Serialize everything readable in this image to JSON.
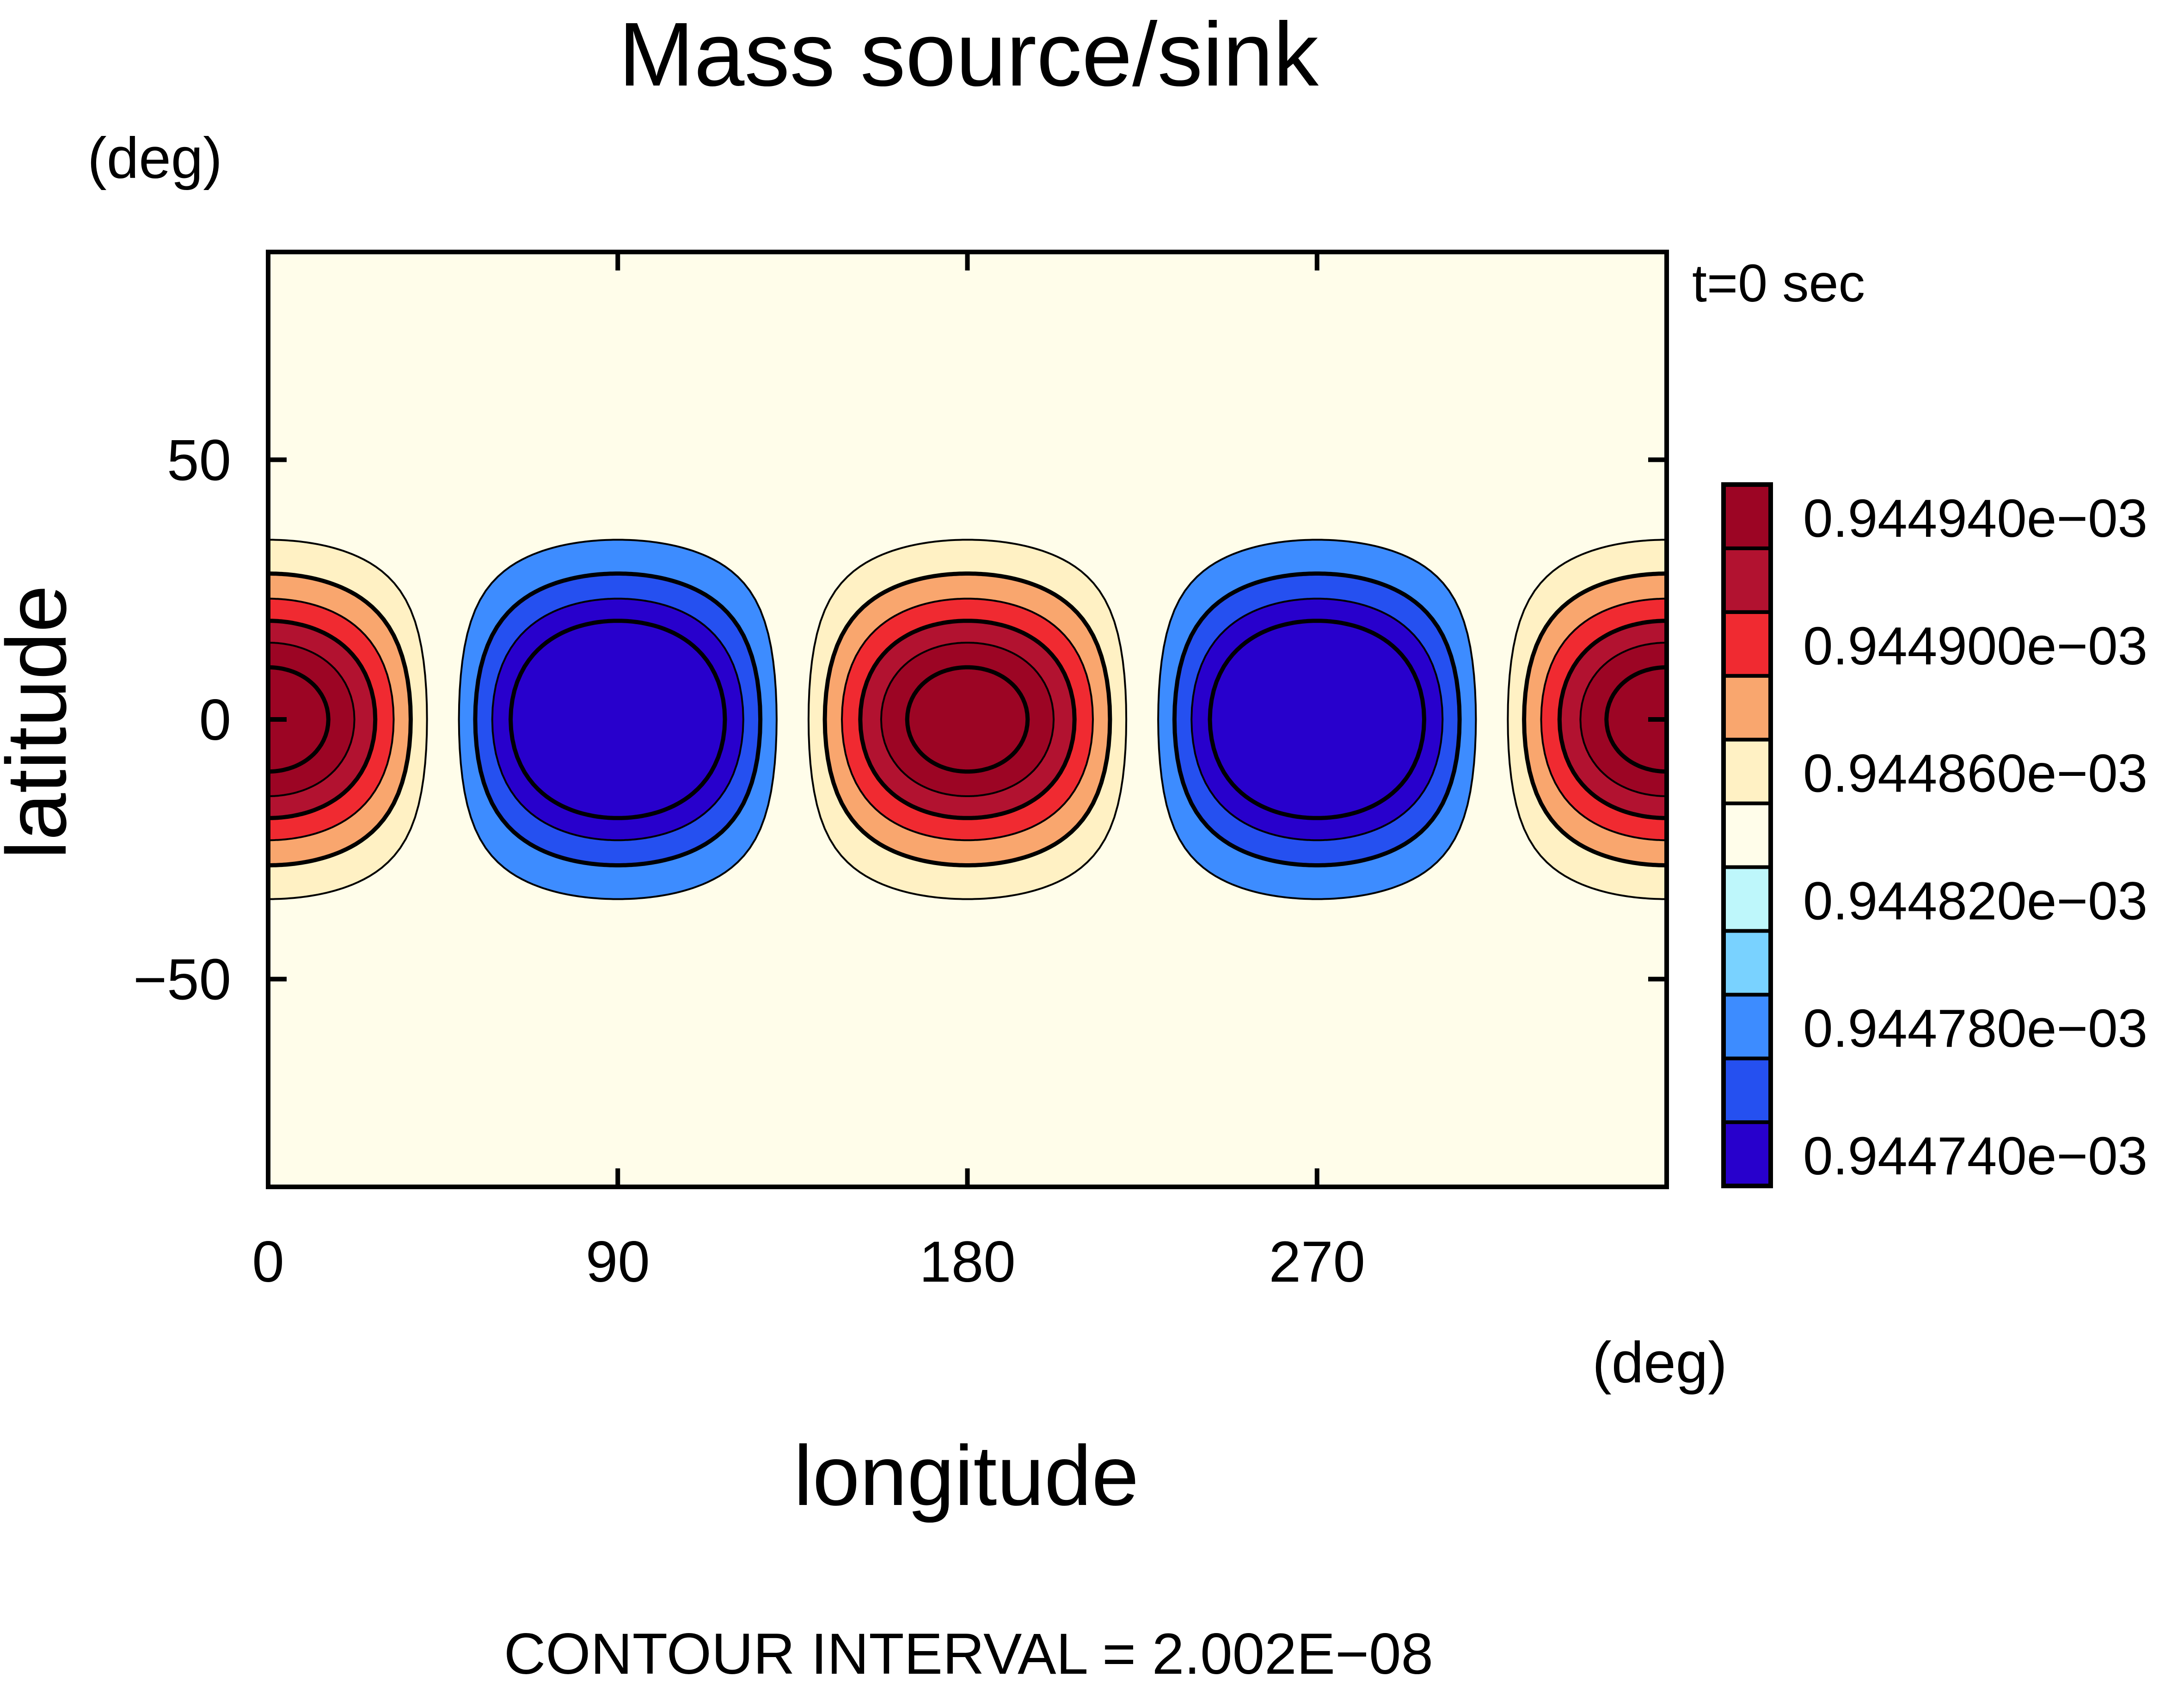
{
  "chart_data": {
    "type": "heatmap",
    "title": "Mass source/sink",
    "subtitle": "t=0 sec",
    "xlabel": "longitude",
    "ylabel": "latitude",
    "x_unit": "(deg)",
    "y_unit": "(deg)",
    "xlim": [
      0,
      360
    ],
    "ylim": [
      -90,
      90
    ],
    "x_ticks": [
      0,
      90,
      180,
      270
    ],
    "y_ticks": [
      -50,
      0,
      50
    ],
    "x_tick_labels": [
      "0",
      "90",
      "180",
      "270"
    ],
    "y_tick_labels": [
      "−50",
      "0",
      "50"
    ],
    "footer": "CONTOUR INTERVAL = 2.002E−08",
    "contour_interval": 2.002e-08,
    "field": {
      "description_of_pattern": "zonal wavenumber 2 about a mean value",
      "mean": 0.00094482,
      "amplitude": 1.4e-07,
      "zonal_wavenumber": 2,
      "max_lon": [
        0,
        180
      ],
      "min_lon": [
        90,
        270
      ]
    },
    "colorbar": {
      "levels": [
        0.00094474,
        0.00094476,
        0.00094478,
        0.0009448,
        0.00094482,
        0.00094484,
        0.00094486,
        0.00094488,
        0.0009449,
        0.00094492,
        0.00094494
      ],
      "colors": [
        "#2800cc",
        "#2550f0",
        "#3d8cff",
        "#79d2ff",
        "#bef7fb",
        "#fffdea",
        "#fff1c4",
        "#f9a66e",
        "#f02a31",
        "#b21230",
        "#9c0524"
      ],
      "labels": [
        "0.944740e−03",
        "0.944780e−03",
        "0.944820e−03",
        "0.944860e−03",
        "0.944900e−03",
        "0.944940e−03"
      ],
      "label_levels": [
        0.00094474,
        0.00094478,
        0.00094482,
        0.00094486,
        0.0009449,
        0.00094494
      ]
    }
  }
}
